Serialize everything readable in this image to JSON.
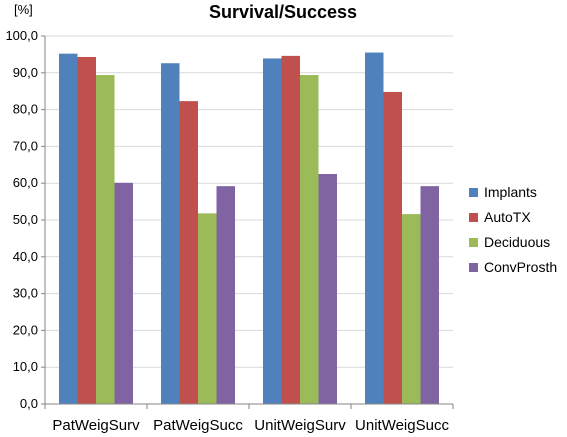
{
  "chart_data": {
    "type": "bar",
    "title": "Survival/Success",
    "ylabel": "[%]",
    "xlabel": "",
    "ylim": [
      0,
      100
    ],
    "y_ticks": [
      "0,0",
      "10,0",
      "20,0",
      "30,0",
      "40,0",
      "50,0",
      "60,0",
      "70,0",
      "80,0",
      "90,0",
      "100,0"
    ],
    "categories": [
      "PatWeigSurv",
      "PatWeigSucc",
      "UnitWeigSurv",
      "UnitWeigSucc"
    ],
    "series": [
      {
        "name": "Implants",
        "color": "#4f81bd",
        "values": [
          95.2,
          92.6,
          93.9,
          95.5
        ]
      },
      {
        "name": "AutoTX",
        "color": "#c0504d",
        "values": [
          94.3,
          82.3,
          94.6,
          84.8
        ]
      },
      {
        "name": "Deciduous",
        "color": "#9bbb59",
        "values": [
          89.4,
          51.8,
          89.4,
          51.6
        ]
      },
      {
        "name": "ConvProsth",
        "color": "#8064a2",
        "values": [
          60.1,
          59.2,
          62.5,
          59.2
        ]
      }
    ],
    "grid": true,
    "legend_position": "right"
  }
}
